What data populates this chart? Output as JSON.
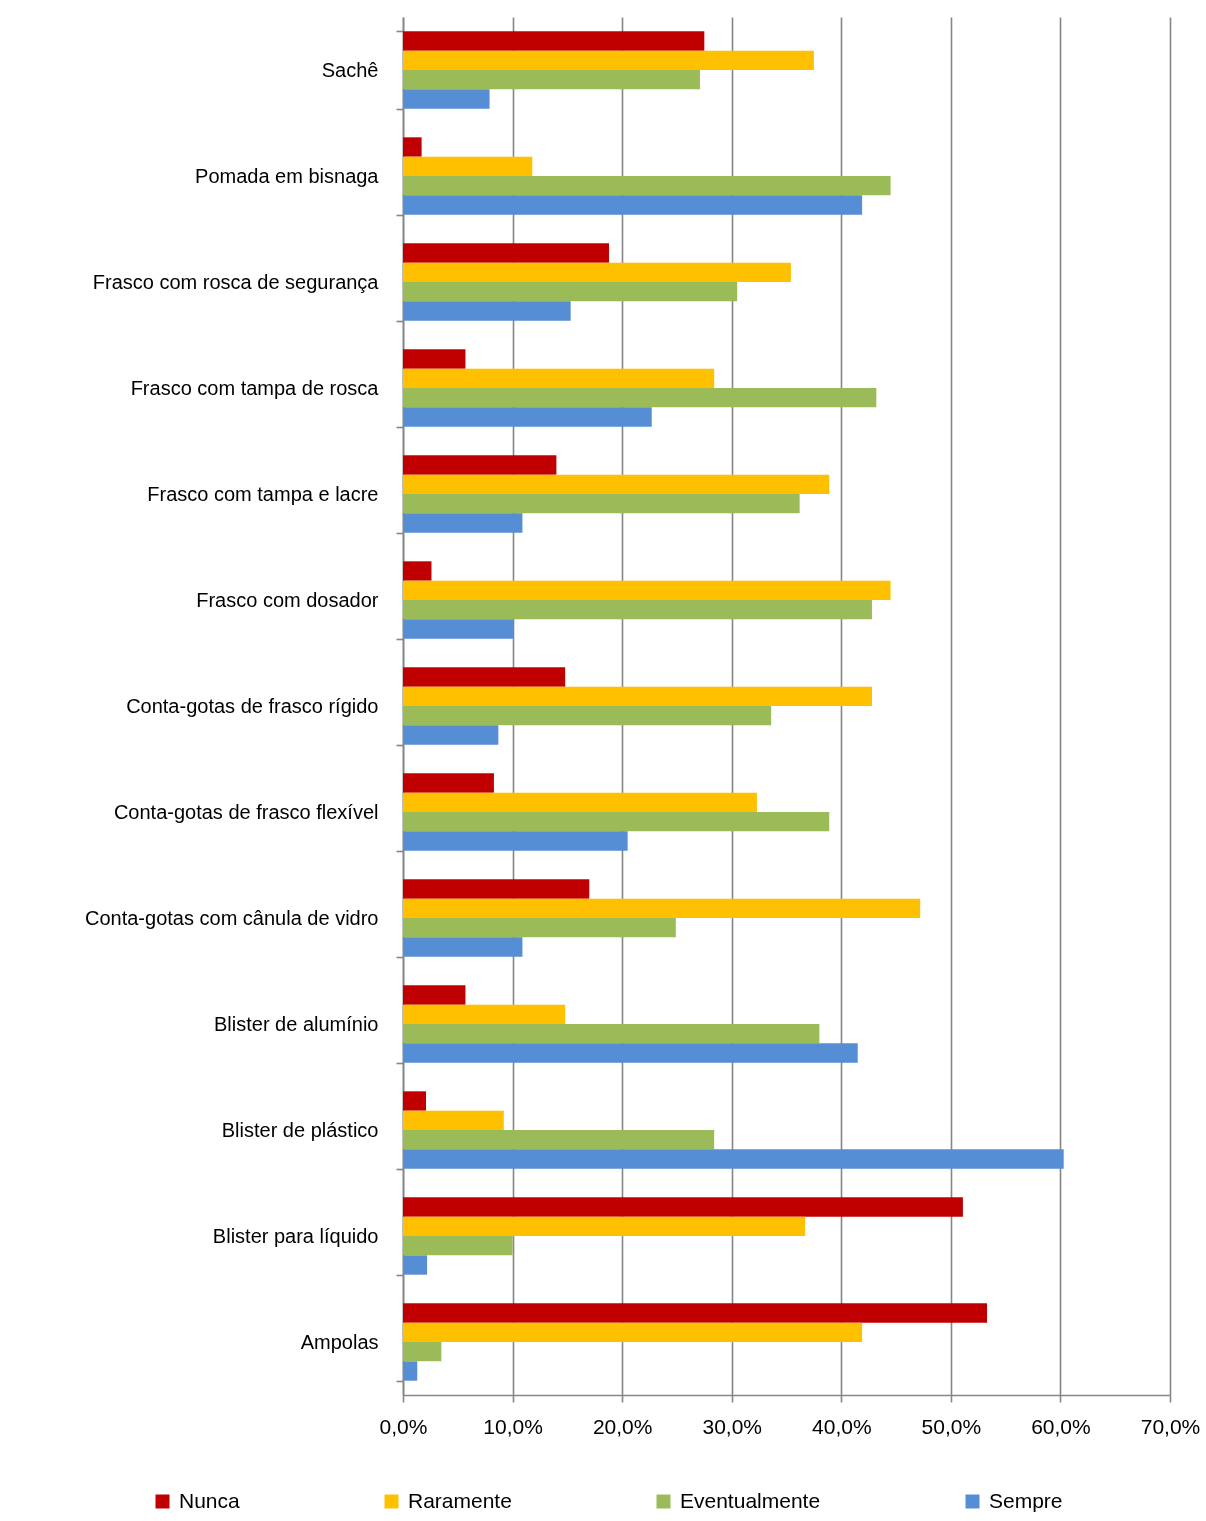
{
  "chart_data": {
    "type": "bar",
    "orientation": "horizontal",
    "categories": [
      "Sachê",
      "Pomada em bisnaga",
      "Frasco com rosca de segurança",
      "Frasco com tampa de rosca",
      "Frasco com tampa e lacre",
      "Frasco com dosador",
      "Conta-gotas de frasco rígido",
      "Conta-gotas de frasco flexível",
      "Conta-gotas com cânula de vidro",
      "Blister de alumínio",
      "Blister de plástico",
      "Blister para líquido",
      "Ampolas"
    ],
    "series": [
      {
        "name": "Nunca",
        "color": "#c00000",
        "values": [
          27.5,
          1.7,
          18.8,
          5.7,
          14.0,
          2.6,
          14.8,
          8.3,
          17.0,
          5.7,
          2.1,
          51.1,
          53.3
        ]
      },
      {
        "name": "Raramente",
        "color": "#ffc000",
        "values": [
          37.5,
          11.8,
          35.4,
          28.4,
          38.9,
          44.5,
          42.8,
          32.3,
          47.2,
          14.8,
          9.2,
          36.7,
          41.9
        ]
      },
      {
        "name": "Eventualmente",
        "color": "#9bbb59",
        "values": [
          27.1,
          44.5,
          30.5,
          43.2,
          36.2,
          42.8,
          33.6,
          38.9,
          24.9,
          38.0,
          28.4,
          10.0,
          3.5
        ]
      },
      {
        "name": "Sempre",
        "color": "#558ed5",
        "values": [
          7.9,
          41.9,
          15.3,
          22.7,
          10.9,
          10.1,
          8.7,
          20.5,
          10.9,
          41.5,
          60.3,
          2.2,
          1.3
        ]
      }
    ],
    "xlim": [
      0,
      70
    ],
    "xticks": [
      {
        "value": 0,
        "label": "0,0%"
      },
      {
        "value": 10,
        "label": "10,0%"
      },
      {
        "value": 20,
        "label": "20,0%"
      },
      {
        "value": 30,
        "label": "30,0%"
      },
      {
        "value": 40,
        "label": "40,0%"
      },
      {
        "value": 50,
        "label": "50,0%"
      },
      {
        "value": 60,
        "label": "60,0%"
      },
      {
        "value": 70,
        "label": "70,0%"
      }
    ],
    "grid": "x",
    "legend": "bottom"
  }
}
